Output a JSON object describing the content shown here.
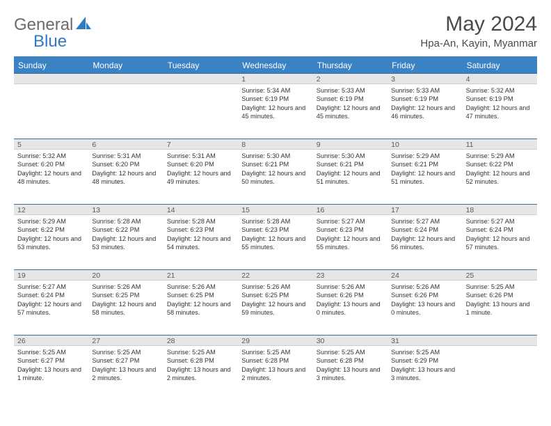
{
  "brand": {
    "part1": "General",
    "part2": "Blue"
  },
  "title": "May 2024",
  "location": "Hpa-An, Kayin, Myanmar",
  "colors": {
    "header_bg": "#3b82c4",
    "header_text": "#ffffff",
    "text_gray": "#4a4a4a",
    "brand_gray": "#6b6b6b",
    "brand_blue": "#2d7bc0",
    "sep_bg": "#e6e6e6"
  },
  "day_names": [
    "Sunday",
    "Monday",
    "Tuesday",
    "Wednesday",
    "Thursday",
    "Friday",
    "Saturday"
  ],
  "weeks": [
    [
      {
        "n": "",
        "sr": "",
        "ss": "",
        "dl": ""
      },
      {
        "n": "",
        "sr": "",
        "ss": "",
        "dl": ""
      },
      {
        "n": "",
        "sr": "",
        "ss": "",
        "dl": ""
      },
      {
        "n": "1",
        "sr": "5:34 AM",
        "ss": "6:19 PM",
        "dl": "12 hours and 45 minutes."
      },
      {
        "n": "2",
        "sr": "5:33 AM",
        "ss": "6:19 PM",
        "dl": "12 hours and 45 minutes."
      },
      {
        "n": "3",
        "sr": "5:33 AM",
        "ss": "6:19 PM",
        "dl": "12 hours and 46 minutes."
      },
      {
        "n": "4",
        "sr": "5:32 AM",
        "ss": "6:19 PM",
        "dl": "12 hours and 47 minutes."
      }
    ],
    [
      {
        "n": "5",
        "sr": "5:32 AM",
        "ss": "6:20 PM",
        "dl": "12 hours and 48 minutes."
      },
      {
        "n": "6",
        "sr": "5:31 AM",
        "ss": "6:20 PM",
        "dl": "12 hours and 48 minutes."
      },
      {
        "n": "7",
        "sr": "5:31 AM",
        "ss": "6:20 PM",
        "dl": "12 hours and 49 minutes."
      },
      {
        "n": "8",
        "sr": "5:30 AM",
        "ss": "6:21 PM",
        "dl": "12 hours and 50 minutes."
      },
      {
        "n": "9",
        "sr": "5:30 AM",
        "ss": "6:21 PM",
        "dl": "12 hours and 51 minutes."
      },
      {
        "n": "10",
        "sr": "5:29 AM",
        "ss": "6:21 PM",
        "dl": "12 hours and 51 minutes."
      },
      {
        "n": "11",
        "sr": "5:29 AM",
        "ss": "6:22 PM",
        "dl": "12 hours and 52 minutes."
      }
    ],
    [
      {
        "n": "12",
        "sr": "5:29 AM",
        "ss": "6:22 PM",
        "dl": "12 hours and 53 minutes."
      },
      {
        "n": "13",
        "sr": "5:28 AM",
        "ss": "6:22 PM",
        "dl": "12 hours and 53 minutes."
      },
      {
        "n": "14",
        "sr": "5:28 AM",
        "ss": "6:23 PM",
        "dl": "12 hours and 54 minutes."
      },
      {
        "n": "15",
        "sr": "5:28 AM",
        "ss": "6:23 PM",
        "dl": "12 hours and 55 minutes."
      },
      {
        "n": "16",
        "sr": "5:27 AM",
        "ss": "6:23 PM",
        "dl": "12 hours and 55 minutes."
      },
      {
        "n": "17",
        "sr": "5:27 AM",
        "ss": "6:24 PM",
        "dl": "12 hours and 56 minutes."
      },
      {
        "n": "18",
        "sr": "5:27 AM",
        "ss": "6:24 PM",
        "dl": "12 hours and 57 minutes."
      }
    ],
    [
      {
        "n": "19",
        "sr": "5:27 AM",
        "ss": "6:24 PM",
        "dl": "12 hours and 57 minutes."
      },
      {
        "n": "20",
        "sr": "5:26 AM",
        "ss": "6:25 PM",
        "dl": "12 hours and 58 minutes."
      },
      {
        "n": "21",
        "sr": "5:26 AM",
        "ss": "6:25 PM",
        "dl": "12 hours and 58 minutes."
      },
      {
        "n": "22",
        "sr": "5:26 AM",
        "ss": "6:25 PM",
        "dl": "12 hours and 59 minutes."
      },
      {
        "n": "23",
        "sr": "5:26 AM",
        "ss": "6:26 PM",
        "dl": "13 hours and 0 minutes."
      },
      {
        "n": "24",
        "sr": "5:26 AM",
        "ss": "6:26 PM",
        "dl": "13 hours and 0 minutes."
      },
      {
        "n": "25",
        "sr": "5:25 AM",
        "ss": "6:26 PM",
        "dl": "13 hours and 1 minute."
      }
    ],
    [
      {
        "n": "26",
        "sr": "5:25 AM",
        "ss": "6:27 PM",
        "dl": "13 hours and 1 minute."
      },
      {
        "n": "27",
        "sr": "5:25 AM",
        "ss": "6:27 PM",
        "dl": "13 hours and 2 minutes."
      },
      {
        "n": "28",
        "sr": "5:25 AM",
        "ss": "6:28 PM",
        "dl": "13 hours and 2 minutes."
      },
      {
        "n": "29",
        "sr": "5:25 AM",
        "ss": "6:28 PM",
        "dl": "13 hours and 2 minutes."
      },
      {
        "n": "30",
        "sr": "5:25 AM",
        "ss": "6:28 PM",
        "dl": "13 hours and 3 minutes."
      },
      {
        "n": "31",
        "sr": "5:25 AM",
        "ss": "6:29 PM",
        "dl": "13 hours and 3 minutes."
      },
      {
        "n": "",
        "sr": "",
        "ss": "",
        "dl": ""
      }
    ]
  ],
  "labels": {
    "sunrise": "Sunrise:",
    "sunset": "Sunset:",
    "daylight": "Daylight:"
  }
}
